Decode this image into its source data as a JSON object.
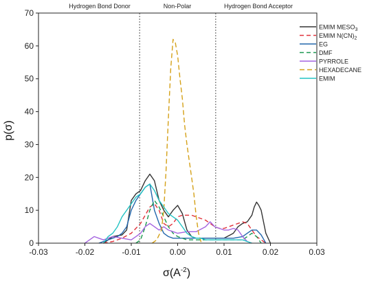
{
  "chart_data": {
    "type": "line",
    "xlabel": "σ(A⁻²)",
    "ylabel": "p(σ)",
    "xlim": [
      -0.03,
      0.03
    ],
    "ylim": [
      0,
      70
    ],
    "xticks": [
      -0.03,
      -0.02,
      -0.01,
      0.0,
      0.01,
      0.02,
      0.03
    ],
    "xtick_labels": [
      "-0.03",
      "-0.02",
      "-0.01",
      "0.00",
      "0.01",
      "0.02",
      "0.03"
    ],
    "yticks": [
      0,
      10,
      20,
      30,
      40,
      50,
      60,
      70
    ],
    "ytick_labels": [
      "0",
      "10",
      "20",
      "30",
      "40",
      "50",
      "60",
      "70"
    ],
    "grid": false,
    "legend_position": "top-right",
    "regions": [
      {
        "label": "Hydrogen Bond Donor"
      },
      {
        "label": "Non-Polar"
      },
      {
        "label": "Hydrogen Bond Acceptor"
      }
    ],
    "cutoffs": [
      -0.0082,
      0.0082
    ],
    "series": [
      {
        "name": "EMIM MESO3",
        "legend_main": "EMIM MESO",
        "legend_sub": "3",
        "color": "#333333",
        "dash": "solid",
        "x": [
          -0.016,
          -0.014,
          -0.012,
          -0.011,
          -0.01,
          -0.009,
          -0.008,
          -0.007,
          -0.006,
          -0.005,
          -0.004,
          -0.003,
          -0.002,
          -0.001,
          0.0,
          0.001,
          0.002,
          0.003,
          0.004,
          0.006,
          0.008,
          0.01,
          0.012,
          0.013,
          0.014,
          0.015,
          0.016,
          0.0165,
          0.017,
          0.0175,
          0.018,
          0.019,
          0.02
        ],
        "y": [
          0,
          2,
          2.5,
          4,
          13,
          15,
          16,
          19,
          21,
          19,
          13,
          10,
          8,
          10,
          11.5,
          9,
          4,
          2,
          1.5,
          1.5,
          1.5,
          1.5,
          3,
          5,
          6,
          6.5,
          8.5,
          11,
          12.5,
          11.5,
          10,
          3,
          0
        ]
      },
      {
        "name": "EMIM N(CN)2",
        "legend_main": "EMIM N(CN)",
        "legend_sub": "2",
        "color": "#e0303a",
        "dash": "6,4",
        "x": [
          -0.016,
          -0.014,
          -0.012,
          -0.01,
          -0.008,
          -0.006,
          -0.005,
          -0.004,
          -0.003,
          -0.002,
          -0.001,
          0.0,
          0.001,
          0.002,
          0.003,
          0.004,
          0.005,
          0.006,
          0.007,
          0.008,
          0.009,
          0.01,
          0.011,
          0.012,
          0.013,
          0.014,
          0.015,
          0.016,
          0.017,
          0.018,
          0.019
        ],
        "y": [
          0,
          0.5,
          1.5,
          3,
          6,
          11,
          12,
          10,
          6,
          5,
          6,
          8,
          8.5,
          8.5,
          8.5,
          8,
          7.5,
          7,
          6,
          5,
          4.5,
          4.5,
          5,
          5.5,
          6,
          6.5,
          6,
          4,
          2,
          1,
          0
        ]
      },
      {
        "name": "EG",
        "legend_main": "EG",
        "legend_sub": "",
        "color": "#2166ac",
        "dash": "solid",
        "x": [
          -0.017,
          -0.015,
          -0.013,
          -0.012,
          -0.011,
          -0.01,
          -0.009,
          -0.008,
          -0.007,
          -0.006,
          -0.005,
          -0.004,
          -0.003,
          -0.002,
          -0.001,
          0.0,
          0.002,
          0.004,
          0.006,
          0.008,
          0.01,
          0.012,
          0.014,
          0.015,
          0.016,
          0.017,
          0.018,
          0.019
        ],
        "y": [
          0,
          1,
          2,
          3,
          5,
          10,
          13,
          15,
          17,
          18,
          10,
          6,
          3,
          2,
          1.5,
          1.5,
          1.5,
          1.5,
          1.5,
          1.5,
          1.5,
          1.5,
          2,
          3,
          4,
          4,
          2.5,
          0
        ]
      },
      {
        "name": "DMF",
        "legend_main": "DMF",
        "legend_sub": "",
        "color": "#1a9850",
        "dash": "6,4",
        "x": [
          -0.009,
          -0.008,
          -0.007,
          -0.006,
          -0.005,
          -0.004,
          -0.003,
          -0.002,
          -0.001,
          0.0,
          0.001,
          0.002,
          0.004,
          0.006,
          0.008,
          0.01,
          0.012,
          0.014,
          0.015,
          0.016,
          0.017,
          0.018
        ],
        "y": [
          0,
          1,
          5,
          10,
          13,
          11,
          8,
          5,
          3,
          2,
          1.5,
          1,
          1,
          1,
          1,
          1,
          1,
          1,
          2,
          3,
          2,
          0
        ]
      },
      {
        "name": "PYRROLE",
        "legend_main": "PYRROLE",
        "legend_sub": "",
        "color": "#a463e0",
        "dash": "solid",
        "x": [
          -0.02,
          -0.019,
          -0.018,
          -0.017,
          -0.016,
          -0.015,
          -0.014,
          -0.012,
          -0.01,
          -0.009,
          -0.008,
          -0.007,
          -0.006,
          -0.005,
          -0.004,
          -0.003,
          -0.002,
          0.0,
          0.002,
          0.004,
          0.006,
          0.007,
          0.008,
          0.009,
          0.01,
          0.011,
          0.012,
          0.013,
          0.014,
          0.015,
          0.016
        ],
        "y": [
          0,
          1,
          2,
          1.5,
          1,
          1.5,
          2,
          1.5,
          1,
          2,
          3,
          5,
          6,
          5,
          4,
          5,
          4,
          3,
          3.5,
          3.5,
          5,
          6.5,
          5,
          4.5,
          4,
          4,
          4.5,
          4,
          2,
          0.5,
          0
        ]
      },
      {
        "name": "HEXADECANE",
        "legend_main": "HEXADECANE",
        "legend_sub": "",
        "color": "#d4a017",
        "dash": "7,4",
        "x": [
          -0.0055,
          -0.0045,
          -0.0035,
          -0.003,
          -0.0025,
          -0.002,
          -0.0015,
          -0.001,
          -0.0005,
          0.0,
          0.0005,
          0.001,
          0.0015,
          0.002,
          0.0025,
          0.003,
          0.0035,
          0.004,
          0.0045,
          0.005,
          0.0055
        ],
        "y": [
          0,
          1,
          4,
          10,
          22,
          38,
          53,
          62,
          61,
          57,
          50,
          44,
          36,
          30,
          25,
          20,
          15,
          8,
          3,
          0.5,
          0
        ]
      },
      {
        "name": "EMIM",
        "legend_main": "EMIM",
        "legend_sub": "",
        "color": "#22c3c3",
        "dash": "solid",
        "x": [
          -0.016,
          -0.015,
          -0.014,
          -0.013,
          -0.012,
          -0.011,
          -0.01,
          -0.009,
          -0.008,
          -0.007,
          -0.006,
          -0.005,
          -0.004,
          -0.003,
          -0.002,
          -0.001,
          0.0,
          0.001,
          0.002,
          0.003,
          0.004,
          0.005,
          0.006,
          0.008,
          0.01,
          0.012,
          0.014,
          0.015,
          0.016
        ],
        "y": [
          0,
          2,
          3,
          5,
          8,
          10,
          12,
          14,
          15,
          17,
          18,
          16,
          13,
          11,
          9,
          8,
          7,
          5,
          3,
          2,
          1.5,
          1.5,
          1,
          1,
          1,
          1,
          1,
          0.5,
          0
        ]
      }
    ]
  }
}
